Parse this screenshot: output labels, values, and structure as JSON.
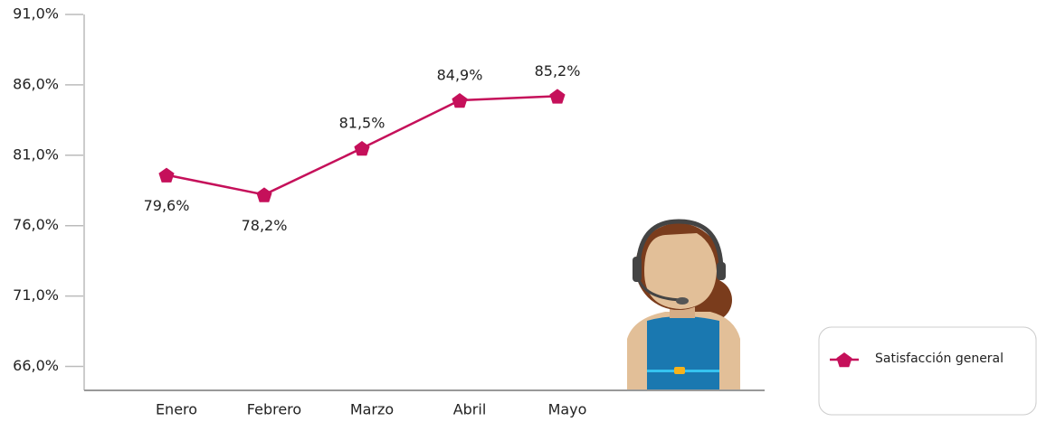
{
  "chart_data": {
    "type": "line",
    "categories": [
      "Enero",
      "Febrero",
      "Marzo",
      "Abril",
      "Mayo"
    ],
    "series": [
      {
        "name": "Satisfacción general",
        "color": "#c5105a",
        "values": [
          79.6,
          78.2,
          81.5,
          84.9,
          85.2
        ],
        "value_labels": [
          "79,6%",
          "78,2%",
          "81,5%",
          "84,9%",
          "85,2%"
        ]
      }
    ],
    "ylim": [
      64.3,
      91
    ],
    "yticks": [
      {
        "value": 66,
        "label": "66,0%"
      },
      {
        "value": 71,
        "label": "71,0%"
      },
      {
        "value": 76,
        "label": "76,0%"
      },
      {
        "value": 81,
        "label": "81,0%"
      },
      {
        "value": 86,
        "label": "86,0%"
      },
      {
        "value": 91,
        "label": "91,0%"
      }
    ]
  }
}
